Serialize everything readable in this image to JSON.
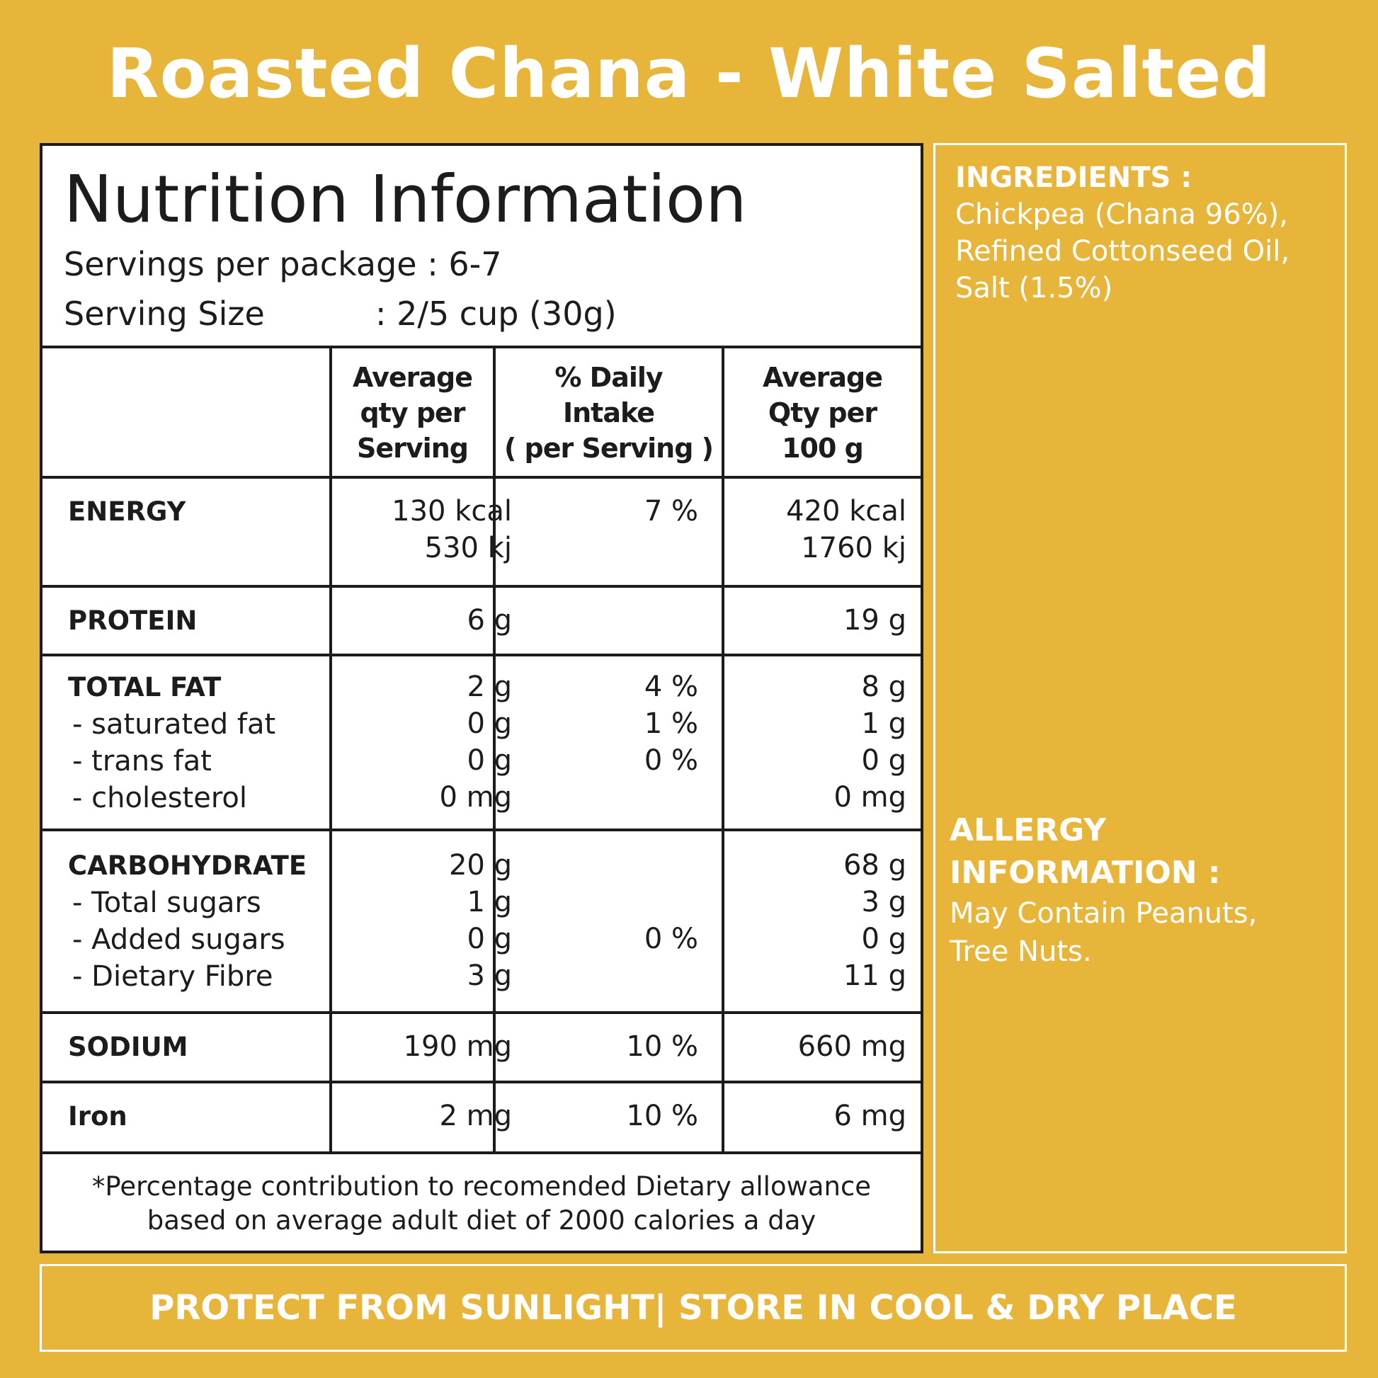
{
  "title": "Roasted Chana - White Salted",
  "nutrition": {
    "heading": "Nutrition Information",
    "servings_label": "Servings per package",
    "servings_value": ": 6-7",
    "size_label": "Serving Size",
    "size_value": ": 2/5 cup (30g)",
    "columns": [
      "Average\nqty per\nServing",
      "% Daily\nIntake\n( per Serving )",
      "Average\nQty per\n100 g"
    ],
    "rows": {
      "energy": {
        "name": "ENERGY",
        "serv": "130 kcal\n530 kj",
        "daily": "7 %",
        "per100": "420 kcal\n1760 kj"
      },
      "protein": {
        "name": "PROTEIN",
        "serv": "6 g",
        "daily": "",
        "per100": "19 g"
      },
      "fat": {
        "name": "TOTAL FAT",
        "subs": [
          "- saturated fat",
          "- trans fat",
          "- cholesterol"
        ],
        "serv": "2 g\n0 g\n0 g\n0 mg",
        "daily": "4 %\n1 %\n0 %",
        "per100": "8 g\n1 g\n0 g\n0 mg"
      },
      "carb": {
        "name": "CARBOHYDRATE",
        "subs": [
          "- Total sugars",
          "- Added sugars",
          "- Dietary Fibre"
        ],
        "serv": "20 g\n1 g\n0 g\n3 g",
        "daily": "0 %",
        "per100": "68 g\n3 g\n0 g\n11 g"
      },
      "sodium": {
        "name": "SODIUM",
        "serv": "190 mg",
        "daily": "10 %",
        "per100": "660 mg"
      },
      "iron": {
        "name": "Iron",
        "serv": "2 mg",
        "daily": "10 %",
        "per100": "6 mg"
      }
    },
    "footnote": "*Percentage contribution to recomended Dietary allowance\nbased on average adult diet of 2000 calories a day"
  },
  "ingredients": {
    "title": "INGREDIENTS :",
    "text": "Chickpea (Chana 96%),\nRefined Cottonseed Oil,\nSalt (1.5%)"
  },
  "allergy": {
    "title": "ALLERGY\nINFORMATION :",
    "text": "May Contain Peanuts,\nTree Nuts."
  },
  "storage": "PROTECT FROM SUNLIGHT| STORE IN COOL & DRY PLACE",
  "colors": {
    "background": "#E8B53B",
    "panel": "#FFFFFF",
    "ink": "#1C1C1C"
  }
}
